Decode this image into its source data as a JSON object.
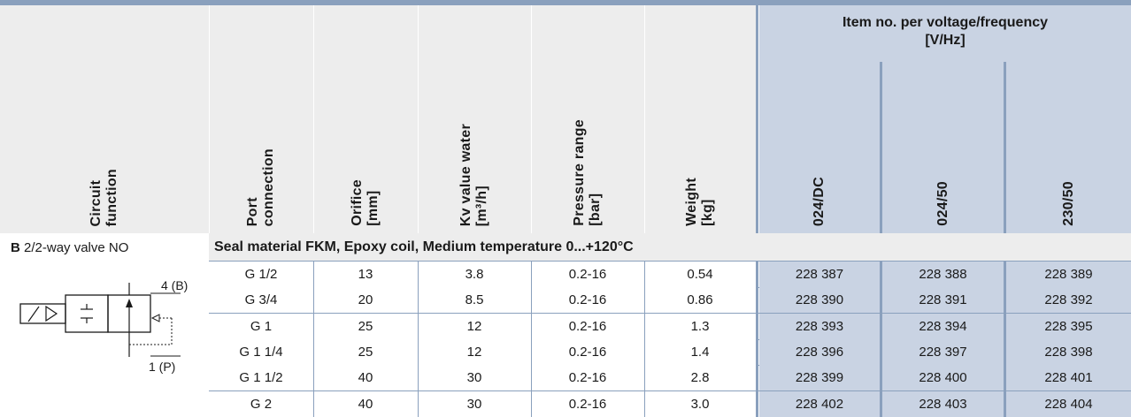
{
  "table": {
    "columns": {
      "circuit": "Circuit\nfunction",
      "port": "Port\nconnection",
      "orifice": "Orifice\n[mm]",
      "kv": "Kv value water\n[m³/h]",
      "pressure": "Pressure range\n[bar]",
      "weight": "Weight\n[kg]"
    },
    "item_group_title": "Item no. per voltage/frequency\n[V/Hz]",
    "voltages": [
      "024/DC",
      "024/50",
      "230/50"
    ],
    "section": {
      "letter": "B",
      "valve_type": " 2/2-way valve NO",
      "title": "Seal material FKM, Epoxy coil, Medium temperature 0...+120°C",
      "symbol_port_top": "4 (B)",
      "symbol_port_bottom": "1 (P)"
    },
    "rows": [
      {
        "port": "G 1/2",
        "orifice": "13",
        "kv": "3.8",
        "pressure": "0.2-16",
        "weight": "0.54",
        "items": [
          "228 387",
          "228 388",
          "228 389"
        ]
      },
      {
        "port": "G 3/4",
        "orifice": "20",
        "kv": "8.5",
        "pressure": "0.2-16",
        "weight": "0.86",
        "items": [
          "228 390",
          "228 391",
          "228 392"
        ]
      },
      {
        "port": "G 1",
        "orifice": "25",
        "kv": "12",
        "pressure": "0.2-16",
        "weight": "1.3",
        "items": [
          "228 393",
          "228 394",
          "228 395"
        ]
      },
      {
        "port": "G 1 1/4",
        "orifice": "25",
        "kv": "12",
        "pressure": "0.2-16",
        "weight": "1.4",
        "items": [
          "228 396",
          "228 397",
          "228 398"
        ]
      },
      {
        "port": "G 1 1/2",
        "orifice": "40",
        "kv": "30",
        "pressure": "0.2-16",
        "weight": "2.8",
        "items": [
          "228 399",
          "228 400",
          "228 401"
        ]
      },
      {
        "port": "G 2",
        "orifice": "40",
        "kv": "30",
        "pressure": "0.2-16",
        "weight": "3.0",
        "items": [
          "228 402",
          "228 403",
          "228 404"
        ]
      }
    ]
  },
  "colors": {
    "header_grey": "#ededed",
    "header_blue": "#c9d3e3",
    "rule_blue": "#8aa0bd"
  }
}
